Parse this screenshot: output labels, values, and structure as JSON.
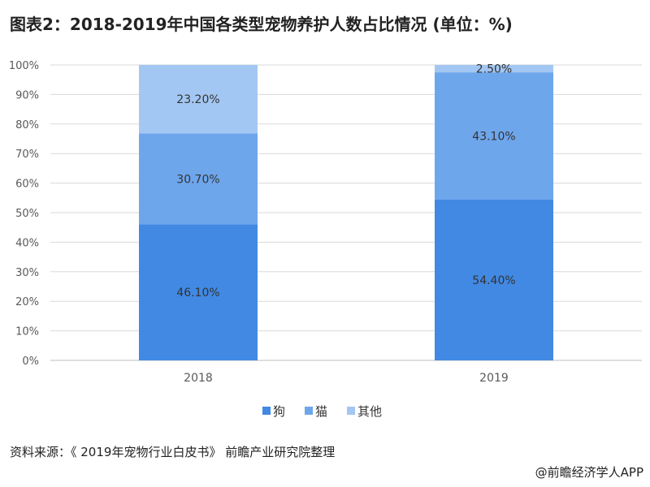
{
  "header": {
    "title": "图表2：2018-2019年中国各类型宠物养护人数占比情况 (单位：%)"
  },
  "footer": {
    "source": "资料来源：《 2019年宠物行业白皮书》 前瞻产业研究院整理",
    "credit": "@前瞻经济学人APP"
  },
  "colors": {
    "狗": "#4189e3",
    "猫": "#6ea6ec",
    "其他": "#a3c7f3",
    "grid": "#d9d9d9",
    "axis": "#bfbfbf"
  },
  "chart_data": {
    "type": "bar",
    "stacked": true,
    "categories": [
      "2018",
      "2019"
    ],
    "series": [
      {
        "name": "狗",
        "values": [
          46.1,
          54.4
        ],
        "labels": [
          "46.10%",
          "54.40%"
        ]
      },
      {
        "name": "猫",
        "values": [
          30.7,
          43.1
        ],
        "labels": [
          "30.70%",
          "43.10%"
        ]
      },
      {
        "name": "其他",
        "values": [
          23.2,
          2.5
        ],
        "labels": [
          "23.20%",
          "2.50%"
        ]
      }
    ],
    "ylim": [
      0,
      100
    ],
    "yticks": [
      0,
      10,
      20,
      30,
      40,
      50,
      60,
      70,
      80,
      90,
      100
    ],
    "ytick_labels": [
      "0%",
      "10%",
      "20%",
      "30%",
      "40%",
      "50%",
      "60%",
      "70%",
      "80%",
      "90%",
      "100%"
    ],
    "grid": true,
    "legend": "bottom-center",
    "title": "图表2：2018-2019年中国各类型宠物养护人数占比情况 (单位：%)",
    "xlabel": "",
    "ylabel": ""
  }
}
